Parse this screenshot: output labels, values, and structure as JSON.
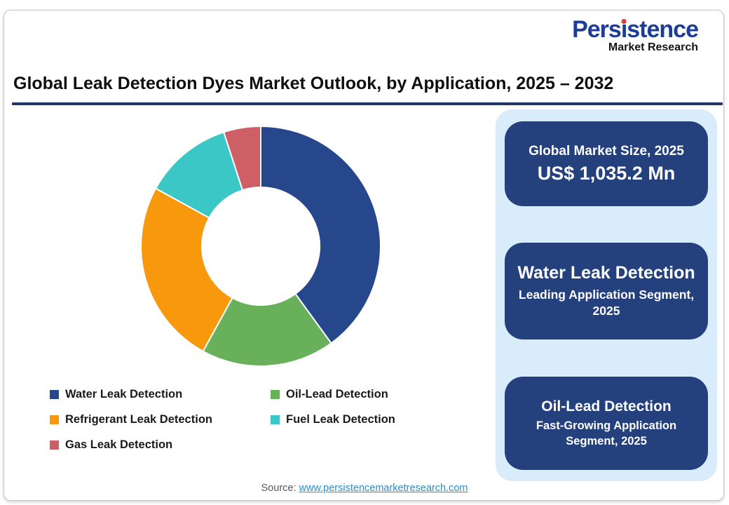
{
  "logo": {
    "part1": "Pers",
    "part2": "i",
    "part3": "stence",
    "subtitle": "Market Research",
    "brand_color": "#1e3d96",
    "dot_color": "#e03a35"
  },
  "title": "Global Leak Detection Dyes Market Outlook, by Application, 2025 – 2032",
  "chart_data": {
    "type": "pie",
    "subtype": "donut",
    "title": "Global Leak Detection Dyes Market Outlook, by Application, 2025 – 2032",
    "categories": [
      "Water Leak Detection",
      "Oil-Lead Detection",
      "Refrigerant Leak Detection",
      "Fuel Leak Detection",
      "Gas Leak Detection"
    ],
    "values": [
      40,
      18,
      25,
      12,
      5
    ],
    "colors": [
      "#27478c",
      "#68b15a",
      "#f8990d",
      "#3ac7c5",
      "#cf5f66"
    ],
    "start_angle_deg": 0,
    "inner_radius_ratio": 0.49,
    "legend_position": "bottom",
    "legend_columns": 2,
    "slice_border_color": "#ffffff"
  },
  "sidebar": {
    "background": "#d8ecfb",
    "box_color": "#24417e",
    "boxes": [
      {
        "title": "Global Market Size, 2025",
        "value": "US$ 1,035.2 Mn"
      },
      {
        "title": "Water Leak Detection",
        "subtitle": "Leading Application Segment, 2025"
      },
      {
        "title": "Oil-Lead Detection",
        "subtitle": "Fast-Growing Application Segment, 2025"
      }
    ]
  },
  "footer": {
    "source_label": "Source:",
    "source_link": "www.persistencemarketresearch.com"
  }
}
